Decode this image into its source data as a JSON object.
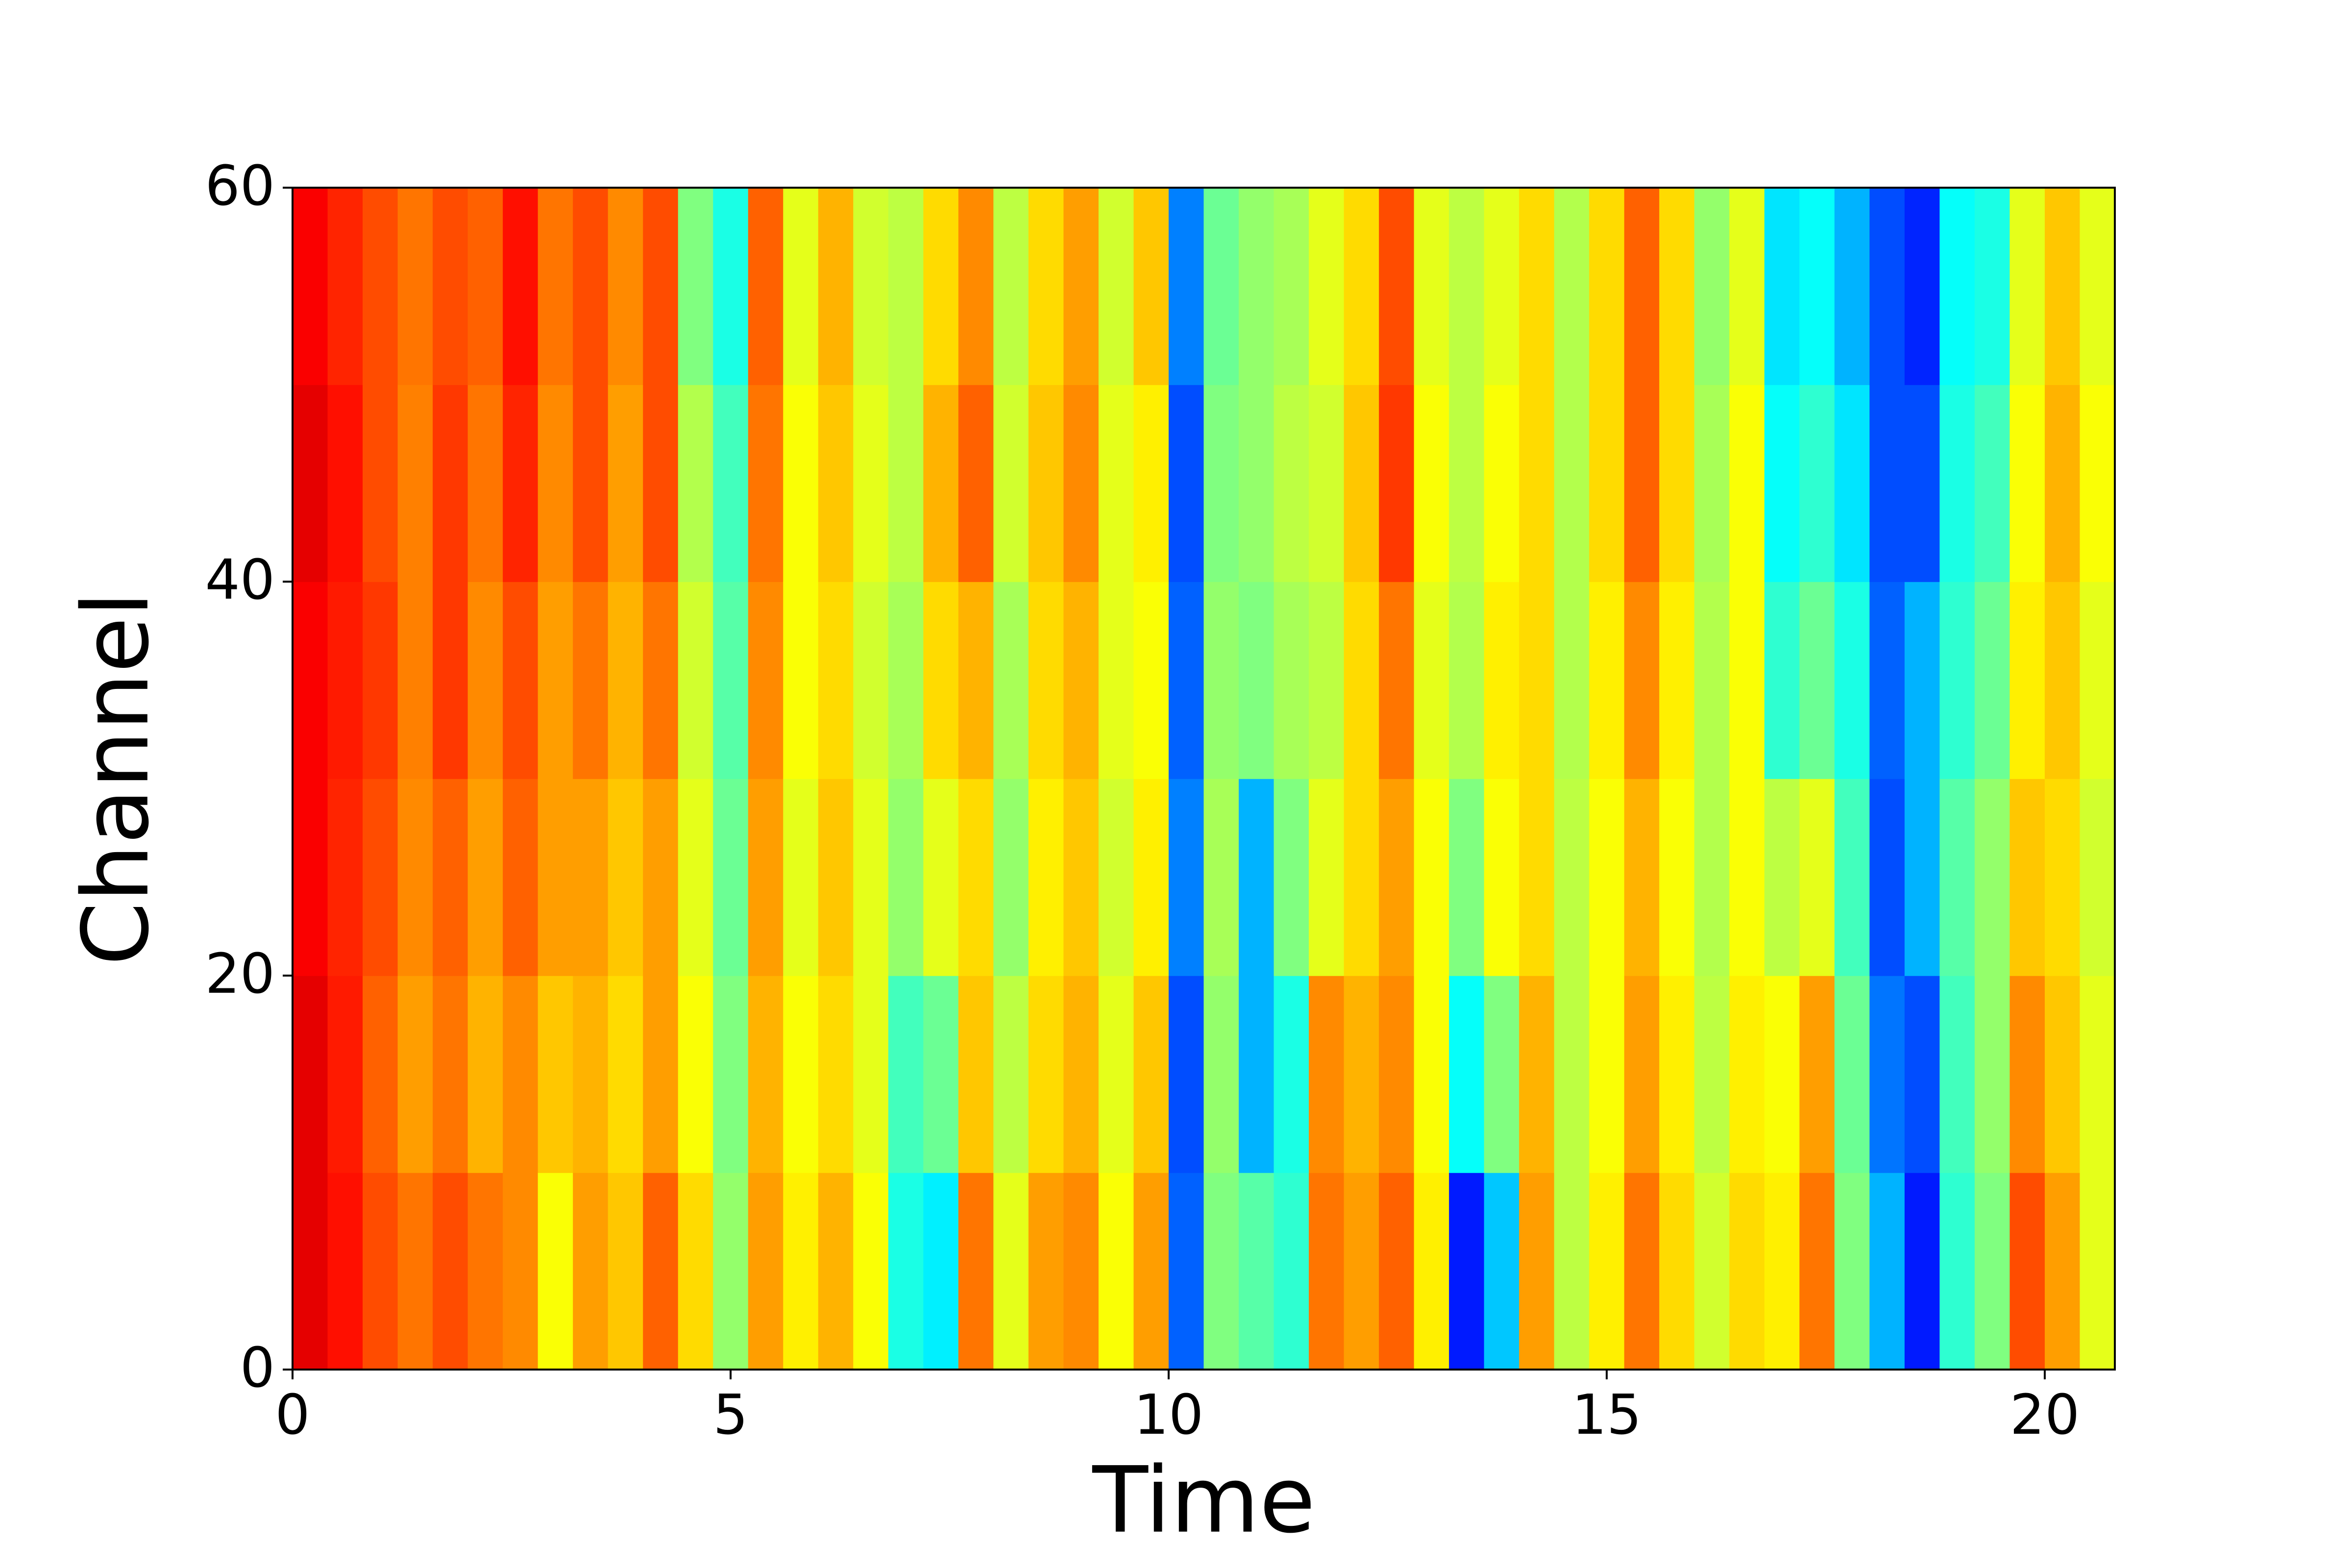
{
  "chart_data": {
    "type": "heatmap",
    "colormap": "jet",
    "clim": [
      0,
      1
    ],
    "x_label": "Time",
    "y_label": "Channel",
    "xlim": [
      0,
      20.8
    ],
    "ylim": [
      0,
      60
    ],
    "xticks": [
      0,
      5,
      10,
      15,
      20
    ],
    "yticks": [
      0,
      20,
      40,
      60
    ],
    "x_edges": [
      0,
      0.4,
      0.8,
      1.2,
      1.6,
      2,
      2.4,
      2.8,
      3.2,
      3.6,
      4,
      4.4,
      4.8,
      5.2,
      5.6,
      6,
      6.4,
      6.8,
      7.2,
      7.6,
      8,
      8.4,
      8.8,
      9.2,
      9.6,
      10,
      10.4,
      10.8,
      11.2,
      11.6,
      12,
      12.4,
      12.8,
      13.2,
      13.6,
      14,
      14.4,
      14.8,
      15.2,
      15.6,
      16,
      16.4,
      16.8,
      17.2,
      17.6,
      18,
      18.4,
      18.8,
      19.2,
      19.6,
      20,
      20.4,
      20.8
    ],
    "y_edges": [
      0,
      10,
      20,
      30,
      40,
      50,
      60
    ],
    "values": [
      [
        0.9,
        0.9,
        0.88,
        0.88,
        0.9,
        0.88
      ],
      [
        0.86,
        0.85,
        0.84,
        0.85,
        0.86,
        0.84
      ],
      [
        0.8,
        0.78,
        0.8,
        0.82,
        0.8,
        0.8
      ],
      [
        0.76,
        0.72,
        0.74,
        0.75,
        0.75,
        0.76
      ],
      [
        0.8,
        0.76,
        0.78,
        0.82,
        0.82,
        0.8
      ],
      [
        0.76,
        0.7,
        0.72,
        0.74,
        0.76,
        0.78
      ],
      [
        0.74,
        0.74,
        0.78,
        0.8,
        0.84,
        0.86
      ],
      [
        0.62,
        0.68,
        0.72,
        0.72,
        0.74,
        0.76
      ],
      [
        0.72,
        0.7,
        0.72,
        0.76,
        0.8,
        0.8
      ],
      [
        0.68,
        0.66,
        0.68,
        0.7,
        0.72,
        0.74
      ],
      [
        0.78,
        0.72,
        0.72,
        0.76,
        0.8,
        0.8
      ],
      [
        0.66,
        0.62,
        0.6,
        0.58,
        0.55,
        0.5
      ],
      [
        0.52,
        0.5,
        0.48,
        0.46,
        0.44,
        0.4
      ],
      [
        0.72,
        0.7,
        0.72,
        0.74,
        0.76,
        0.78
      ],
      [
        0.64,
        0.62,
        0.6,
        0.62,
        0.62,
        0.6
      ],
      [
        0.7,
        0.66,
        0.68,
        0.66,
        0.68,
        0.7
      ],
      [
        0.62,
        0.6,
        0.6,
        0.58,
        0.6,
        0.58
      ],
      [
        0.4,
        0.44,
        0.52,
        0.54,
        0.56,
        0.56
      ],
      [
        0.36,
        0.48,
        0.6,
        0.66,
        0.7,
        0.66
      ],
      [
        0.76,
        0.68,
        0.66,
        0.7,
        0.78,
        0.74
      ],
      [
        0.6,
        0.56,
        0.52,
        0.54,
        0.58,
        0.56
      ],
      [
        0.72,
        0.66,
        0.64,
        0.66,
        0.68,
        0.66
      ],
      [
        0.74,
        0.7,
        0.68,
        0.7,
        0.74,
        0.72
      ],
      [
        0.62,
        0.6,
        0.58,
        0.6,
        0.6,
        0.58
      ],
      [
        0.72,
        0.68,
        0.64,
        0.62,
        0.64,
        0.68
      ],
      [
        0.22,
        0.2,
        0.25,
        0.22,
        0.2,
        0.25
      ],
      [
        0.5,
        0.52,
        0.54,
        0.52,
        0.5,
        0.48
      ],
      [
        0.46,
        0.3,
        0.3,
        0.5,
        0.52,
        0.52
      ],
      [
        0.42,
        0.4,
        0.5,
        0.54,
        0.56,
        0.54
      ],
      [
        0.76,
        0.74,
        0.6,
        0.56,
        0.58,
        0.6
      ],
      [
        0.72,
        0.7,
        0.66,
        0.66,
        0.68,
        0.66
      ],
      [
        0.78,
        0.74,
        0.72,
        0.76,
        0.82,
        0.8
      ],
      [
        0.64,
        0.62,
        0.62,
        0.6,
        0.62,
        0.6
      ],
      [
        0.15,
        0.38,
        0.5,
        0.55,
        0.56,
        0.56
      ],
      [
        0.32,
        0.5,
        0.62,
        0.64,
        0.62,
        0.6
      ],
      [
        0.72,
        0.7,
        0.66,
        0.66,
        0.66,
        0.66
      ],
      [
        0.56,
        0.56,
        0.56,
        0.55,
        0.55,
        0.55
      ],
      [
        0.64,
        0.62,
        0.62,
        0.64,
        0.66,
        0.66
      ],
      [
        0.76,
        0.72,
        0.7,
        0.74,
        0.78,
        0.78
      ],
      [
        0.66,
        0.64,
        0.62,
        0.64,
        0.66,
        0.66
      ],
      [
        0.58,
        0.56,
        0.55,
        0.55,
        0.54,
        0.52
      ],
      [
        0.66,
        0.64,
        0.62,
        0.62,
        0.62,
        0.6
      ],
      [
        0.64,
        0.62,
        0.56,
        0.42,
        0.38,
        0.35
      ],
      [
        0.76,
        0.72,
        0.6,
        0.48,
        0.42,
        0.38
      ],
      [
        0.5,
        0.48,
        0.44,
        0.4,
        0.35,
        0.3
      ],
      [
        0.3,
        0.24,
        0.2,
        0.22,
        0.2,
        0.2
      ],
      [
        0.15,
        0.2,
        0.3,
        0.3,
        0.2,
        0.16
      ],
      [
        0.42,
        0.44,
        0.46,
        0.42,
        0.4,
        0.38
      ],
      [
        0.5,
        0.52,
        0.52,
        0.48,
        0.44,
        0.4
      ],
      [
        0.8,
        0.74,
        0.68,
        0.64,
        0.62,
        0.6
      ],
      [
        0.72,
        0.68,
        0.66,
        0.68,
        0.7,
        0.68
      ],
      [
        0.6,
        0.6,
        0.58,
        0.6,
        0.62,
        0.6
      ]
    ]
  }
}
